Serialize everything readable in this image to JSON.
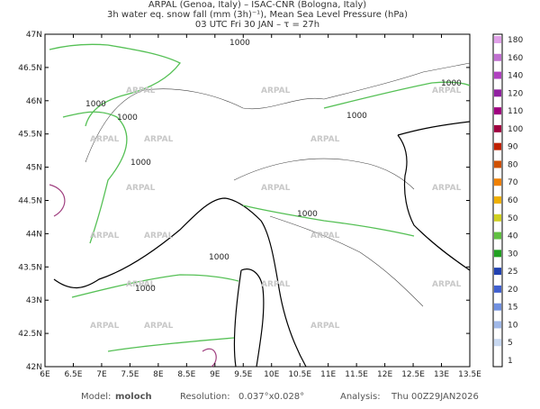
{
  "header": {
    "lines": [
      "ARPAL (Genoa, Italy)  –  ISAC-CNR (Bologna, Italy)",
      "3h water eq. snow fall (mm (3h)⁻¹), Mean Sea Level Pressure (hPa)",
      "03 UTC Fri 30 JAN  –  τ = 27h"
    ]
  },
  "map": {
    "lat_labels": [
      "47N",
      "46.5N",
      "46N",
      "45.5N",
      "45N",
      "44.5N",
      "44N",
      "43.5N",
      "43N",
      "42.5N",
      "42N"
    ],
    "lon_labels": [
      "6E",
      "6.5E",
      "7E",
      "7.5E",
      "8E",
      "8.5E",
      "9E",
      "9.5E",
      "10E",
      "10.5E",
      "11E",
      "11.5E",
      "12E",
      "12.5E",
      "13E",
      "13.5E"
    ],
    "watermark": "ARPAL",
    "isobar_label": "1000"
  },
  "colorbar": {
    "labels": [
      "1",
      "5",
      "10",
      "15",
      "20",
      "25",
      "30",
      "40",
      "50",
      "60",
      "70",
      "80",
      "90",
      "100",
      "110",
      "120",
      "140",
      "160",
      "180"
    ],
    "colors": [
      "#ffffff",
      "#c8d8f0",
      "#a0b8e8",
      "#7090e0",
      "#4060d0",
      "#2040b0",
      "#20a020",
      "#60c040",
      "#d0d020",
      "#f0b000",
      "#f08000",
      "#d05000",
      "#c02000",
      "#a00040",
      "#a00080",
      "#9020a0",
      "#b040c0",
      "#c070d0",
      "#e0a0e8"
    ]
  },
  "footer": {
    "model_label": "Model:",
    "model": "moloch",
    "resolution_label": "Resolution:",
    "resolution": "0.037°x0.028°",
    "analysis_label": "Analysis:",
    "analysis": "Thu 00Z29JAN2026"
  }
}
